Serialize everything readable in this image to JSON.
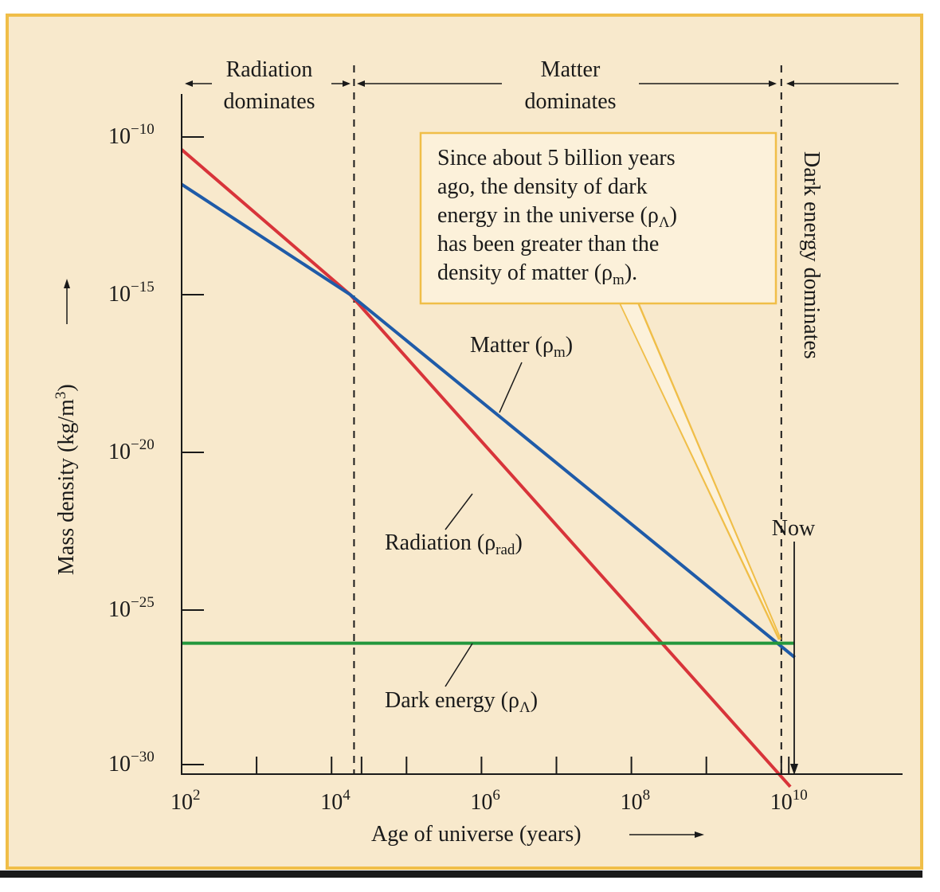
{
  "chart_data": {
    "type": "line",
    "title": "",
    "xlabel": "Age of universe (years)",
    "ylabel": "Mass density (kg/m",
    "ylabel_sup": "3",
    "ylabel_end": ")",
    "x_scale": "log10",
    "y_scale": "log10",
    "xlim_exp": [
      2,
      11.6
    ],
    "ylim_exp": [
      -32.2,
      -8.8
    ],
    "x_ticks": [
      {
        "base": "10",
        "exp": "2",
        "value": 2
      },
      {
        "base": "10",
        "exp": "4",
        "value": 4
      },
      {
        "base": "10",
        "exp": "6",
        "value": 6
      },
      {
        "base": "10",
        "exp": "8",
        "value": 8
      },
      {
        "base": "10",
        "exp": "10",
        "value": 10
      }
    ],
    "x_minor_ticks": [
      3,
      4,
      4.4,
      5,
      6,
      7,
      8,
      9,
      10,
      10.1
    ],
    "y_ticks": [
      {
        "base": "10",
        "exp": "−10",
        "value": -10
      },
      {
        "base": "10",
        "exp": "−15",
        "value": -15
      },
      {
        "base": "10",
        "exp": "−20",
        "value": -20
      },
      {
        "base": "10",
        "exp": "−25",
        "value": -25
      },
      {
        "base": "10",
        "exp": "−30",
        "value": -30
      }
    ],
    "series": [
      {
        "name": "Radiation",
        "color": "#d8343a",
        "points_log": [
          [
            2,
            -10.4
          ],
          [
            4.25,
            -15.0
          ],
          [
            10.12,
            -30.6
          ]
        ]
      },
      {
        "name": "Matter",
        "color": "#1f5ba8",
        "points_log": [
          [
            2,
            -11.5
          ],
          [
            4.25,
            -15.0
          ],
          [
            10.18,
            -26.5
          ]
        ]
      },
      {
        "name": "Dark energy",
        "color": "#23973c",
        "points_log": [
          [
            2,
            -26.05
          ],
          [
            10.18,
            -26.05
          ]
        ]
      }
    ],
    "eras": {
      "radiation_matter_boundary": 4.3,
      "matter_darkenergy_boundary": 10.0,
      "now": 10.18
    },
    "labels": {
      "radiation_era_line1": "Radiation",
      "radiation_era_line2": "dominates",
      "matter_era_line1": "Matter",
      "matter_era_line2": "dominates",
      "dark_energy_era": "Dark energy dominates",
      "now": "Now",
      "matter_series_main": "Matter (ρ",
      "matter_series_sub": "m",
      "matter_series_end": ")",
      "radiation_series_main": "Radiation (ρ",
      "radiation_series_sub": "rad",
      "radiation_series_end": ")",
      "dark_series_main": "Dark energy (ρ",
      "dark_series_sub": "Λ",
      "dark_series_end": ")"
    },
    "annotation": {
      "line1": "Since about 5 billion years",
      "line2": "ago, the density of dark",
      "line3_main": "energy in the universe (ρ",
      "line3_sub": "Λ",
      "line3_end": ")",
      "line4": "has been greater than the",
      "line5_main": "density of matter (ρ",
      "line5_sub": "m",
      "line5_end": ")."
    },
    "colors": {
      "background": "#f8e9cc",
      "frame": "#f0be48",
      "callout_fill": "#fcf1da"
    },
    "grid": false
  }
}
